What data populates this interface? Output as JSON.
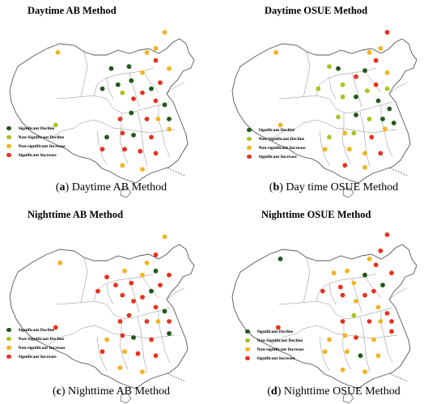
{
  "legend_colors": {
    "significant_decline": "#1f5a16",
    "non_significant_decline": "#a8c41e",
    "non_significant_increase": "#f5b31e",
    "significant_increase": "#e8321e"
  },
  "panels": [
    {
      "title": "Daytime AB Method",
      "caption_letter": "a",
      "caption_text": "Daytime AB Method",
      "legend": [
        "Significant Decline",
        "Non-Significant Decline",
        "Non-significant Increase",
        "Significant Increase"
      ]
    },
    {
      "title": "Daytime OSUE Method",
      "caption_letter": "b",
      "caption_text": "Day time OSUE Method",
      "legend": [
        "Significant Decline",
        "Non-Significant Decline",
        "Non-significant Increase",
        "Significant Increase"
      ]
    },
    {
      "title": "Nighttime AB Method",
      "caption_letter": "c",
      "caption_text": "Nighttime AB Method",
      "legend": [
        "Significant Decline",
        "Non-Significant Decline",
        "Non-significant Increase",
        "Significant Increase"
      ]
    },
    {
      "title": "Nighttime OSUE Method",
      "caption_letter": "d",
      "caption_text": "Nighttime OSUE Method",
      "legend": [
        "Significant Decline",
        "Non-Significant Decline",
        "Non-significant Increase",
        "Significant Increase"
      ]
    }
  ],
  "map_markers": [
    {
      "map": "a",
      "points": [
        [
          "nsi",
          0.26,
          0.22
        ],
        [
          "sd",
          0.5,
          0.3
        ],
        [
          "sd",
          0.58,
          0.29
        ],
        [
          "nsi",
          0.66,
          0.22
        ],
        [
          "nsi",
          0.74,
          0.12
        ],
        [
          "nsi",
          0.7,
          0.2
        ],
        [
          "si",
          0.7,
          0.26
        ],
        [
          "nsi",
          0.64,
          0.32
        ],
        [
          "sd",
          0.59,
          0.36
        ],
        [
          "sd",
          0.53,
          0.38
        ],
        [
          "sd",
          0.46,
          0.4
        ],
        [
          "nsd",
          0.55,
          0.42
        ],
        [
          "si",
          0.6,
          0.45
        ],
        [
          "si",
          0.64,
          0.42
        ],
        [
          "sd",
          0.68,
          0.4
        ],
        [
          "si",
          0.72,
          0.37
        ],
        [
          "nsi",
          0.76,
          0.3
        ],
        [
          "si",
          0.7,
          0.46
        ],
        [
          "sd",
          0.74,
          0.48
        ],
        [
          "si",
          0.54,
          0.55
        ],
        [
          "sd",
          0.59,
          0.52
        ],
        [
          "si",
          0.66,
          0.55
        ],
        [
          "nsi",
          0.71,
          0.55
        ],
        [
          "sd",
          0.76,
          0.55
        ],
        [
          "si",
          0.55,
          0.62
        ],
        [
          "sd",
          0.6,
          0.63
        ],
        [
          "si",
          0.68,
          0.64
        ],
        [
          "nsi",
          0.76,
          0.6
        ],
        [
          "si",
          0.56,
          0.7
        ],
        [
          "si",
          0.63,
          0.71
        ],
        [
          "si",
          0.7,
          0.72
        ],
        [
          "nsi",
          0.55,
          0.78
        ],
        [
          "nsi",
          0.64,
          0.8
        ],
        [
          "nsd",
          0.25,
          0.58
        ],
        [
          "sd",
          0.48,
          0.64
        ],
        [
          "si",
          0.46,
          0.7
        ]
      ]
    },
    {
      "map": "b",
      "points": [
        [
          "nsi",
          0.24,
          0.22
        ],
        [
          "nsd",
          0.48,
          0.29
        ],
        [
          "sd",
          0.52,
          0.3
        ],
        [
          "nsi",
          0.66,
          0.22
        ],
        [
          "si",
          0.74,
          0.12
        ],
        [
          "nsi",
          0.71,
          0.2
        ],
        [
          "si",
          0.69,
          0.26
        ],
        [
          "sd",
          0.64,
          0.31
        ],
        [
          "si",
          0.6,
          0.34
        ],
        [
          "nsd",
          0.54,
          0.38
        ],
        [
          "nsd",
          0.43,
          0.4
        ],
        [
          "nsd",
          0.54,
          0.44
        ],
        [
          "sd",
          0.6,
          0.44
        ],
        [
          "nsd",
          0.65,
          0.41
        ],
        [
          "si",
          0.69,
          0.38
        ],
        [
          "nsi",
          0.74,
          0.32
        ],
        [
          "sd",
          0.7,
          0.46
        ],
        [
          "sd",
          0.75,
          0.5
        ],
        [
          "nsd",
          0.52,
          0.54
        ],
        [
          "sd",
          0.6,
          0.53
        ],
        [
          "nsd",
          0.66,
          0.55
        ],
        [
          "sd",
          0.72,
          0.55
        ],
        [
          "sd",
          0.77,
          0.57
        ],
        [
          "nsi",
          0.55,
          0.62
        ],
        [
          "nsd",
          0.59,
          0.62
        ],
        [
          "si",
          0.67,
          0.64
        ],
        [
          "nsi",
          0.73,
          0.6
        ],
        [
          "nsi",
          0.57,
          0.7
        ],
        [
          "nsi",
          0.64,
          0.72
        ],
        [
          "si",
          0.71,
          0.72
        ],
        [
          "si",
          0.55,
          0.78
        ],
        [
          "nsi",
          0.64,
          0.79
        ],
        [
          "nsi",
          0.26,
          0.58
        ],
        [
          "nsd",
          0.48,
          0.64
        ],
        [
          "nsi",
          0.46,
          0.7
        ],
        [
          "nsd",
          0.74,
          0.4
        ]
      ]
    },
    {
      "map": "c",
      "points": [
        [
          "nsi",
          0.27,
          0.26
        ],
        [
          "si",
          0.48,
          0.33
        ],
        [
          "nsi",
          0.56,
          0.3
        ],
        [
          "nsi",
          0.66,
          0.26
        ],
        [
          "nsi",
          0.74,
          0.13
        ],
        [
          "si",
          0.7,
          0.22
        ],
        [
          "sd",
          0.7,
          0.3
        ],
        [
          "nsi",
          0.64,
          0.32
        ],
        [
          "si",
          0.59,
          0.36
        ],
        [
          "si",
          0.52,
          0.37
        ],
        [
          "si",
          0.44,
          0.4
        ],
        [
          "si",
          0.55,
          0.42
        ],
        [
          "si",
          0.6,
          0.45
        ],
        [
          "si",
          0.64,
          0.43
        ],
        [
          "sd",
          0.68,
          0.4
        ],
        [
          "si",
          0.72,
          0.37
        ],
        [
          "si",
          0.76,
          0.32
        ],
        [
          "si",
          0.7,
          0.48
        ],
        [
          "sd",
          0.74,
          0.5
        ],
        [
          "si",
          0.54,
          0.55
        ],
        [
          "si",
          0.58,
          0.52
        ],
        [
          "si",
          0.66,
          0.55
        ],
        [
          "nsi",
          0.71,
          0.55
        ],
        [
          "si",
          0.76,
          0.55
        ],
        [
          "si",
          0.55,
          0.62
        ],
        [
          "sd",
          0.6,
          0.63
        ],
        [
          "si",
          0.68,
          0.64
        ],
        [
          "sd",
          0.76,
          0.61
        ],
        [
          "nsi",
          0.56,
          0.7
        ],
        [
          "si",
          0.62,
          0.71
        ],
        [
          "si",
          0.7,
          0.72
        ],
        [
          "nsi",
          0.54,
          0.78
        ],
        [
          "nsi",
          0.64,
          0.8
        ],
        [
          "si",
          0.25,
          0.58
        ],
        [
          "nsi",
          0.48,
          0.64
        ],
        [
          "si",
          0.46,
          0.7
        ]
      ]
    },
    {
      "map": "d",
      "points": [
        [
          "sd",
          0.26,
          0.24
        ],
        [
          "nsi",
          0.5,
          0.31
        ],
        [
          "nsi",
          0.56,
          0.3
        ],
        [
          "nsi",
          0.66,
          0.24
        ],
        [
          "si",
          0.74,
          0.12
        ],
        [
          "si",
          0.71,
          0.2
        ],
        [
          "si",
          0.69,
          0.27
        ],
        [
          "sd",
          0.64,
          0.32
        ],
        [
          "nsi",
          0.59,
          0.36
        ],
        [
          "si",
          0.53,
          0.38
        ],
        [
          "si",
          0.45,
          0.4
        ],
        [
          "si",
          0.54,
          0.42
        ],
        [
          "nsi",
          0.6,
          0.45
        ],
        [
          "si",
          0.64,
          0.42
        ],
        [
          "si",
          0.68,
          0.4
        ],
        [
          "sd",
          0.72,
          0.37
        ],
        [
          "si",
          0.76,
          0.31
        ],
        [
          "nsi",
          0.7,
          0.48
        ],
        [
          "si",
          0.74,
          0.51
        ],
        [
          "si",
          0.54,
          0.55
        ],
        [
          "nsd",
          0.59,
          0.52
        ],
        [
          "si",
          0.66,
          0.55
        ],
        [
          "nsi",
          0.71,
          0.55
        ],
        [
          "si",
          0.76,
          0.55
        ],
        [
          "nsi",
          0.55,
          0.62
        ],
        [
          "si",
          0.6,
          0.63
        ],
        [
          "nsi",
          0.68,
          0.64
        ],
        [
          "si",
          0.76,
          0.6
        ],
        [
          "nsi",
          0.56,
          0.7
        ],
        [
          "sd",
          0.62,
          0.72
        ],
        [
          "nsi",
          0.7,
          0.72
        ],
        [
          "nsi",
          0.54,
          0.79
        ],
        [
          "nsi",
          0.64,
          0.8
        ],
        [
          "si",
          0.25,
          0.58
        ],
        [
          "nsi",
          0.48,
          0.64
        ],
        [
          "nsi",
          0.46,
          0.7
        ]
      ]
    }
  ]
}
